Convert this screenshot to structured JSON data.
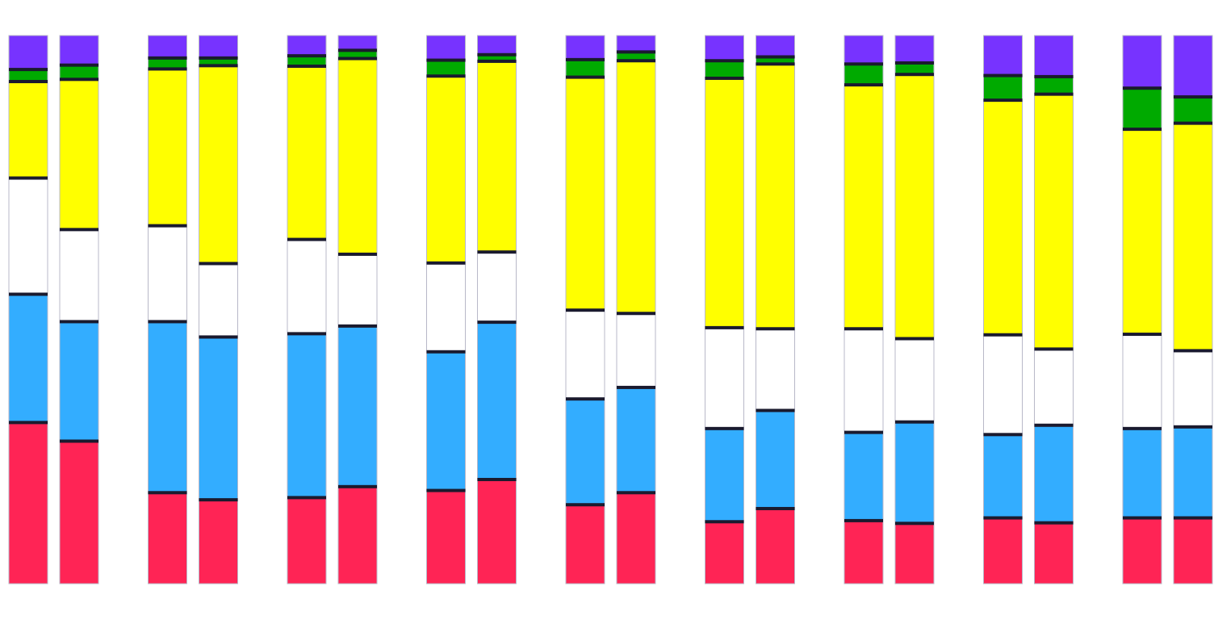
{
  "chart_data": {
    "type": "bar",
    "stacked": true,
    "orientation": "vertical",
    "grouping": "pairs",
    "ylim": [
      0,
      1
    ],
    "axes_visible": false,
    "grid": false,
    "legend": "none",
    "segment_colors": [
      "#ff2455",
      "#33adff",
      "#ffffff",
      "#ffff00",
      "#00aa00",
      "#7733ff"
    ],
    "segment_color_names": [
      "red",
      "blue",
      "white",
      "yellow",
      "green",
      "purple"
    ],
    "separator_color": "#1a1a2e",
    "groups": [
      {
        "bars": [
          {
            "values": [
              0.294,
              0.234,
              0.212,
              0.176,
              0.022,
              0.062
            ]
          },
          {
            "values": [
              0.26,
              0.218,
              0.168,
              0.274,
              0.026,
              0.054
            ]
          }
        ]
      },
      {
        "bars": [
          {
            "values": [
              0.166,
              0.312,
              0.175,
              0.286,
              0.02,
              0.041
            ]
          },
          {
            "values": [
              0.153,
              0.297,
              0.134,
              0.361,
              0.014,
              0.041
            ]
          }
        ]
      },
      {
        "bars": [
          {
            "values": [
              0.157,
              0.299,
              0.172,
              0.316,
              0.019,
              0.037
            ]
          },
          {
            "values": [
              0.177,
              0.293,
              0.131,
              0.357,
              0.015,
              0.027
            ]
          }
        ]
      },
      {
        "bars": [
          {
            "values": [
              0.17,
              0.253,
              0.162,
              0.341,
              0.029,
              0.045
            ]
          },
          {
            "values": [
              0.19,
              0.287,
              0.128,
              0.348,
              0.012,
              0.035
            ]
          }
        ]
      },
      {
        "bars": [
          {
            "values": [
              0.144,
              0.193,
              0.162,
              0.425,
              0.032,
              0.044
            ]
          },
          {
            "values": [
              0.166,
              0.192,
              0.135,
              0.461,
              0.016,
              0.03
            ]
          }
        ]
      },
      {
        "bars": [
          {
            "values": [
              0.113,
              0.17,
              0.184,
              0.455,
              0.032,
              0.046
            ]
          },
          {
            "values": [
              0.137,
              0.179,
              0.149,
              0.483,
              0.013,
              0.039
            ]
          }
        ]
      },
      {
        "bars": [
          {
            "values": [
              0.115,
              0.161,
              0.189,
              0.445,
              0.038,
              0.052
            ]
          },
          {
            "values": [
              0.11,
              0.185,
              0.152,
              0.482,
              0.021,
              0.05
            ]
          }
        ]
      },
      {
        "bars": [
          {
            "values": [
              0.12,
              0.152,
              0.182,
              0.428,
              0.045,
              0.073
            ]
          },
          {
            "values": [
              0.111,
              0.178,
              0.139,
              0.465,
              0.032,
              0.075
            ]
          }
        ]
      },
      {
        "bars": [
          {
            "values": [
              0.12,
              0.163,
              0.172,
              0.374,
              0.075,
              0.096
            ]
          },
          {
            "values": [
              0.12,
              0.166,
              0.139,
              0.415,
              0.048,
              0.112
            ]
          }
        ]
      }
    ]
  }
}
